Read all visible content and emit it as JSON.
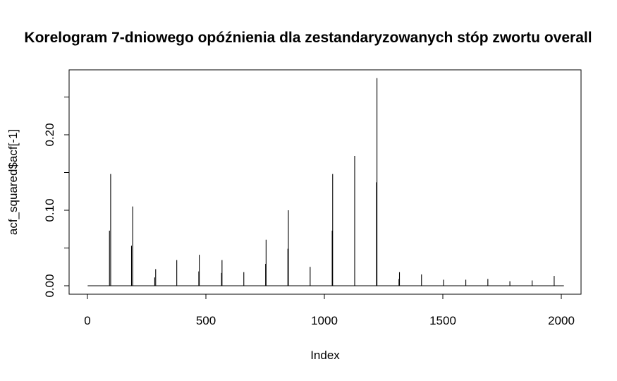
{
  "chart_data": {
    "type": "bar",
    "title": "Korelogram 7-dniowego opóźnienia dla zestandaryzowanych stóp zwortu overall",
    "xlabel": "Index",
    "ylabel": "acf_squared$acf[-1]",
    "xlim": [
      0,
      2000
    ],
    "ylim": [
      0,
      0.27
    ],
    "x_ticks": [
      0,
      500,
      1000,
      1500,
      2000
    ],
    "y_ticks": [
      0.0,
      0.1,
      0.2
    ],
    "y_tick_labels": [
      "0.00",
      "0.10",
      "0.20"
    ],
    "x_tick_labels": [
      "0",
      "500",
      "1000",
      "1500",
      "2000"
    ],
    "grid": false,
    "lags": [
      {
        "x": 93,
        "y": 0.073
      },
      {
        "x": 98,
        "y": 0.148
      },
      {
        "x": 186,
        "y": 0.053
      },
      {
        "x": 191,
        "y": 0.105
      },
      {
        "x": 284,
        "y": 0.011
      },
      {
        "x": 288,
        "y": 0.022
      },
      {
        "x": 377,
        "y": 0.034
      },
      {
        "x": 470,
        "y": 0.019
      },
      {
        "x": 472,
        "y": 0.041
      },
      {
        "x": 566,
        "y": 0.017
      },
      {
        "x": 568,
        "y": 0.034
      },
      {
        "x": 660,
        "y": 0.018
      },
      {
        "x": 752,
        "y": 0.029
      },
      {
        "x": 754,
        "y": 0.061
      },
      {
        "x": 846,
        "y": 0.049
      },
      {
        "x": 848,
        "y": 0.1
      },
      {
        "x": 940,
        "y": 0.025
      },
      {
        "x": 1033,
        "y": 0.073
      },
      {
        "x": 1035,
        "y": 0.148
      },
      {
        "x": 1128,
        "y": 0.172
      },
      {
        "x": 1220,
        "y": 0.137
      },
      {
        "x": 1222,
        "y": 0.275
      },
      {
        "x": 1315,
        "y": 0.009
      },
      {
        "x": 1317,
        "y": 0.018
      },
      {
        "x": 1410,
        "y": 0.015
      },
      {
        "x": 1503,
        "y": 0.008
      },
      {
        "x": 1597,
        "y": 0.008
      },
      {
        "x": 1690,
        "y": 0.009
      },
      {
        "x": 1783,
        "y": 0.006
      },
      {
        "x": 1877,
        "y": 0.007
      },
      {
        "x": 1970,
        "y": 0.013
      }
    ]
  }
}
